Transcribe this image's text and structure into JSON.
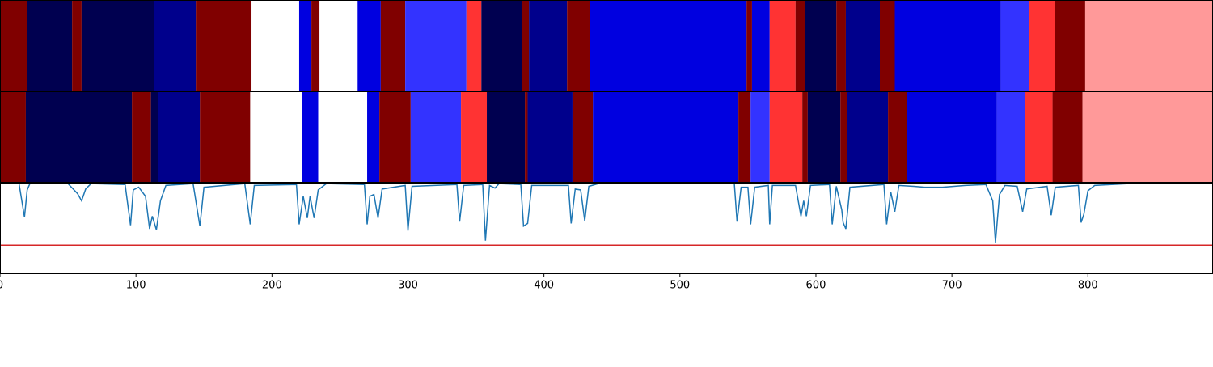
{
  "chart_data": {
    "type": "segments",
    "xlim": [
      0,
      892
    ],
    "xticks": [
      0,
      100,
      200,
      300,
      400,
      500,
      600,
      700,
      800
    ],
    "rows": [
      {
        "boundaries": [
          0,
          20,
          53,
          60,
          113,
          144,
          185,
          220,
          229,
          235,
          263,
          280,
          298,
          343,
          354,
          384,
          389,
          417,
          434,
          549,
          553,
          566,
          585,
          592,
          615,
          622,
          647,
          658,
          736,
          757,
          776,
          798,
          892
        ],
        "colors": [
          "#800000",
          "#000050",
          "#800000",
          "#000050",
          "#00008c",
          "#800000",
          "#ffffff",
          "#0000e0",
          "#800000",
          "#ffffff",
          "#0000e0",
          "#800000",
          "#3333ff",
          "#ff3333",
          "#000050",
          "#800000",
          "#00008c",
          "#800000",
          "#0000e0",
          "#800000",
          "#0000e0",
          "#ff3333",
          "#800000",
          "#000050",
          "#800000",
          "#00008c",
          "#800000",
          "#0000e0",
          "#3333ff",
          "#ff3333",
          "#800000",
          "#ff9999"
        ]
      },
      {
        "boundaries": [
          0,
          19,
          97,
          111,
          116,
          147,
          184,
          222,
          234,
          270,
          279,
          302,
          339,
          358,
          386,
          388,
          421,
          436,
          543,
          552,
          566,
          590,
          594,
          618,
          623,
          653,
          667,
          733,
          754,
          774,
          796,
          892
        ],
        "colors": [
          "#800000",
          "#000050",
          "#800000",
          "#000050",
          "#00008c",
          "#800000",
          "#ffffff",
          "#0000e0",
          "#ffffff",
          "#0000e0",
          "#800000",
          "#3333ff",
          "#ff3333",
          "#000050",
          "#800000",
          "#00008c",
          "#800000",
          "#0000e0",
          "#800000",
          "#3333ff",
          "#ff3333",
          "#800000",
          "#000050",
          "#800000",
          "#00008c",
          "#800000",
          "#0000e0",
          "#3333ff",
          "#ff3333",
          "#800000",
          "#ff9999"
        ]
      }
    ],
    "ylim": [
      0,
      1
    ],
    "line": {
      "color": "#1f77b4",
      "x": [
        0,
        14,
        18,
        20,
        22,
        50,
        57,
        60,
        63,
        67,
        92,
        96,
        98,
        102,
        107,
        110,
        112,
        115,
        118,
        122,
        142,
        147,
        150,
        180,
        184,
        187,
        218,
        220,
        223,
        226,
        228,
        231,
        234,
        240,
        268,
        270,
        272,
        275,
        278,
        281,
        298,
        300,
        303,
        336,
        338,
        341,
        355,
        357,
        360,
        364,
        367,
        383,
        385,
        388,
        391,
        418,
        420,
        423,
        427,
        430,
        433,
        440,
        540,
        542,
        545,
        550,
        552,
        555,
        565,
        566,
        568,
        585,
        589,
        591,
        593,
        596,
        610,
        612,
        615,
        619,
        620,
        622,
        625,
        650,
        652,
        655,
        658,
        661,
        672,
        680,
        693,
        710,
        725,
        730,
        732,
        735,
        739,
        748,
        752,
        755,
        770,
        773,
        776,
        793,
        795,
        797,
        800,
        805,
        830,
        892
      ],
      "values": [
        0.99,
        0.99,
        0.62,
        0.92,
        0.99,
        0.99,
        0.88,
        0.8,
        0.93,
        0.99,
        0.98,
        0.53,
        0.92,
        0.95,
        0.85,
        0.49,
        0.63,
        0.48,
        0.8,
        0.97,
        0.99,
        0.52,
        0.95,
        0.99,
        0.54,
        0.97,
        0.98,
        0.54,
        0.85,
        0.61,
        0.85,
        0.61,
        0.92,
        0.99,
        0.98,
        0.54,
        0.85,
        0.87,
        0.61,
        0.93,
        0.97,
        0.47,
        0.96,
        0.98,
        0.57,
        0.97,
        0.98,
        0.36,
        0.97,
        0.94,
        0.99,
        0.98,
        0.52,
        0.55,
        0.97,
        0.97,
        0.55,
        0.93,
        0.92,
        0.58,
        0.96,
        0.99,
        0.99,
        0.57,
        0.95,
        0.95,
        0.54,
        0.95,
        0.97,
        0.54,
        0.97,
        0.97,
        0.63,
        0.8,
        0.63,
        0.97,
        0.98,
        0.54,
        0.96,
        0.7,
        0.56,
        0.49,
        0.95,
        0.98,
        0.54,
        0.9,
        0.68,
        0.97,
        0.96,
        0.95,
        0.95,
        0.97,
        0.98,
        0.8,
        0.34,
        0.87,
        0.97,
        0.96,
        0.68,
        0.93,
        0.96,
        0.64,
        0.95,
        0.97,
        0.56,
        0.65,
        0.91,
        0.97,
        0.99,
        0.99
      ]
    },
    "threshold": {
      "value": 0.31,
      "color": "#d62728"
    }
  }
}
